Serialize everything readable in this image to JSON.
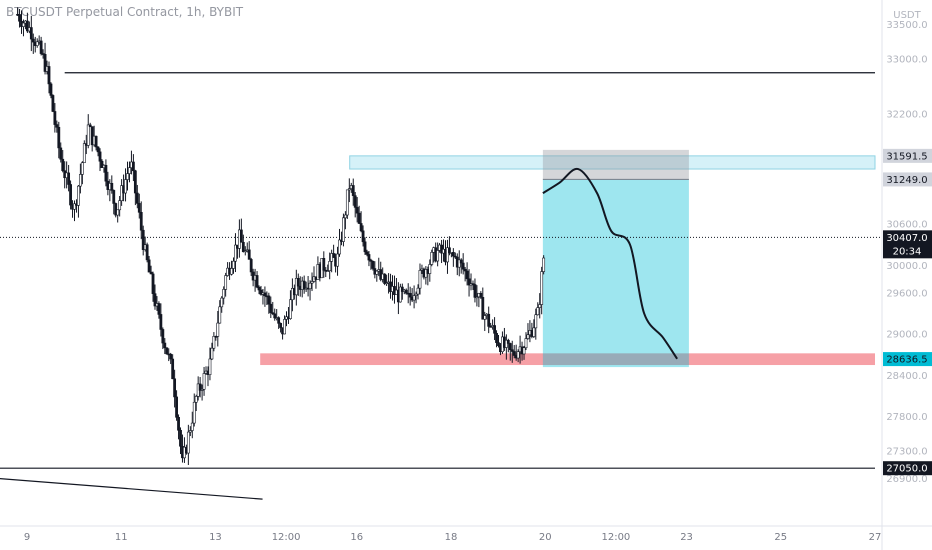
{
  "header": {
    "title": "BTCUSDT Perpetual Contract, 1h, BYBIT",
    "currency": "USDT"
  },
  "chart_data": {
    "type": "candlestick",
    "symbol": "BTCUSDT Perpetual Contract",
    "interval": "1h",
    "exchange": "BYBIT",
    "currency": "USDT",
    "ylim": [
      26560,
      33850
    ],
    "y_ticks": [
      {
        "value": 33500,
        "label": "33500.0"
      },
      {
        "value": 33000,
        "label": "33000.0"
      },
      {
        "value": 32200,
        "label": "32200.0"
      },
      {
        "value": 30600,
        "label": "30600.0"
      },
      {
        "value": 30000,
        "label": "30000.0"
      },
      {
        "value": 29600,
        "label": "29600.0"
      },
      {
        "value": 29000,
        "label": "29000.0"
      },
      {
        "value": 28400,
        "label": "28400.0"
      },
      {
        "value": 27800,
        "label": "27800.0"
      },
      {
        "value": 27300,
        "label": "27300.0"
      },
      {
        "value": 26900,
        "label": "26900.0"
      }
    ],
    "x_ticks": [
      {
        "day": 9,
        "label": "9"
      },
      {
        "day": 11,
        "label": "11"
      },
      {
        "day": 13,
        "label": "13"
      },
      {
        "day": 14.5,
        "label": "12:00"
      },
      {
        "day": 16,
        "label": "16"
      },
      {
        "day": 18,
        "label": "18"
      },
      {
        "day": 20,
        "label": "20"
      },
      {
        "day": 21.5,
        "label": "12:00"
      },
      {
        "day": 23,
        "label": "23"
      },
      {
        "day": 25,
        "label": "25"
      },
      {
        "day": 27,
        "label": "27"
      }
    ],
    "price_keypoints": [
      [
        8.8,
        33650
      ],
      [
        9.1,
        33400
      ],
      [
        9.4,
        32900
      ],
      [
        9.7,
        31600
      ],
      [
        10.0,
        30800
      ],
      [
        10.3,
        32000
      ],
      [
        10.6,
        31500
      ],
      [
        10.9,
        30800
      ],
      [
        11.2,
        31500
      ],
      [
        11.5,
        30200
      ],
      [
        11.8,
        29200
      ],
      [
        12.1,
        28400
      ],
      [
        12.3,
        27100
      ],
      [
        12.6,
        28100
      ],
      [
        12.9,
        28600
      ],
      [
        13.2,
        29800
      ],
      [
        13.5,
        30400
      ],
      [
        13.8,
        29900
      ],
      [
        14.1,
        29500
      ],
      [
        14.4,
        29000
      ],
      [
        14.7,
        29700
      ],
      [
        15.0,
        29800
      ],
      [
        15.3,
        30000
      ],
      [
        15.6,
        30100
      ],
      [
        15.85,
        31200
      ],
      [
        16.1,
        30400
      ],
      [
        16.5,
        29800
      ],
      [
        16.8,
        29600
      ],
      [
        17.1,
        29500
      ],
      [
        17.4,
        29900
      ],
      [
        17.7,
        30200
      ],
      [
        18.1,
        30100
      ],
      [
        18.4,
        29800
      ],
      [
        18.7,
        29300
      ],
      [
        19.0,
        28900
      ],
      [
        19.3,
        28700
      ],
      [
        19.6,
        28900
      ],
      [
        19.85,
        29300
      ],
      [
        20.0,
        30350
      ]
    ],
    "projection_keypoints": [
      [
        19.95,
        31050
      ],
      [
        20.3,
        31200
      ],
      [
        20.7,
        31400
      ],
      [
        21.1,
        31050
      ],
      [
        21.4,
        30500
      ],
      [
        21.8,
        30300
      ],
      [
        22.1,
        29300
      ],
      [
        22.5,
        28950
      ],
      [
        22.8,
        28640
      ]
    ],
    "levels": [
      {
        "name": "top-resistance",
        "value": 32800,
        "from_day": 9.8,
        "to_day": 27.0,
        "color": "#131722"
      },
      {
        "name": "support-line",
        "value": 27050,
        "from_day": 8.4,
        "to_day": 27.0,
        "color": "#131722"
      }
    ],
    "zones": [
      {
        "name": "resistance-zone",
        "low": 31400,
        "high": 31591.5,
        "from_day": 15.85,
        "to_day": 27.0,
        "color": "#d5f1f8"
      },
      {
        "name": "support-zone",
        "low": 28550,
        "high": 28720,
        "from_day": 13.95,
        "to_day": 27.0,
        "color": "#f6a0a6"
      }
    ],
    "trend_line": {
      "from": [
        8.4,
        26900
      ],
      "to": [
        14.0,
        26600
      ],
      "color": "#131722"
    },
    "position": {
      "type": "short",
      "entry": 31249.0,
      "stop": 31591.5,
      "target": 28636.5,
      "from_day": 19.95,
      "to_day": 23.05,
      "target_color": "#00bcd4",
      "stop_color": "#9598a1"
    },
    "last_price": {
      "value": 30407.0,
      "label": "30407.0",
      "countdown": "20:34"
    },
    "price_badges": [
      {
        "name": "stop-price-badge",
        "value": 31591.5,
        "label": "31591.5",
        "bg": "#d1d4dc",
        "fg": "#131722"
      },
      {
        "name": "entry-price-badge",
        "value": 31249.0,
        "label": "31249.0",
        "bg": "#d1d4dc",
        "fg": "#131722"
      },
      {
        "name": "target-price-badge",
        "value": 28636.5,
        "label": "28636.5",
        "bg": "#00bcd4",
        "fg": "#131722"
      },
      {
        "name": "support-price-badge",
        "value": 27050.0,
        "label": "27050.0",
        "bg": "#131722",
        "fg": "#ffffff"
      }
    ]
  }
}
